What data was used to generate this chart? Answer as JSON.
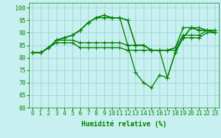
{
  "x": [
    0,
    1,
    2,
    3,
    4,
    5,
    6,
    7,
    8,
    9,
    10,
    11,
    12,
    13,
    14,
    15,
    16,
    17,
    18,
    19,
    20,
    21,
    22,
    23
  ],
  "series": [
    [
      82,
      82,
      84,
      86,
      86,
      86,
      84,
      84,
      84,
      84,
      84,
      84,
      83,
      83,
      83,
      83,
      83,
      83,
      83,
      88,
      88,
      88,
      90,
      90
    ],
    [
      82,
      82,
      84,
      87,
      87,
      87,
      86,
      86,
      86,
      86,
      86,
      86,
      85,
      85,
      85,
      83,
      83,
      83,
      84,
      89,
      89,
      89,
      91,
      91
    ],
    [
      82,
      82,
      84,
      87,
      88,
      89,
      91,
      94,
      96,
      96,
      96,
      96,
      95,
      85,
      85,
      83,
      83,
      83,
      84,
      92,
      92,
      92,
      91,
      91
    ],
    [
      82,
      82,
      84,
      87,
      88,
      89,
      91,
      94,
      96,
      97,
      96,
      96,
      95,
      85,
      85,
      83,
      83,
      72,
      82,
      88,
      92,
      91,
      91,
      90
    ],
    [
      82,
      82,
      84,
      87,
      88,
      89,
      91,
      94,
      96,
      97,
      96,
      96,
      85,
      74,
      70,
      68,
      73,
      72,
      82,
      88,
      92,
      91,
      91,
      90
    ]
  ],
  "line_color": "#008000",
  "marker": "+",
  "markersize": 4,
  "linewidth": 1.0,
  "background_color": "#c8f0f0",
  "grid_color": "#a0d8d8",
  "xlabel": "Humidité relative (%)",
  "ylabel_ticks": [
    60,
    65,
    70,
    75,
    80,
    85,
    90,
    95,
    100
  ],
  "xlim": [
    -0.5,
    23.5
  ],
  "ylim": [
    60,
    102
  ],
  "tick_color": "#008000",
  "xlabel_color": "#008000",
  "tick_fontsize": 6,
  "xlabel_fontsize": 7
}
